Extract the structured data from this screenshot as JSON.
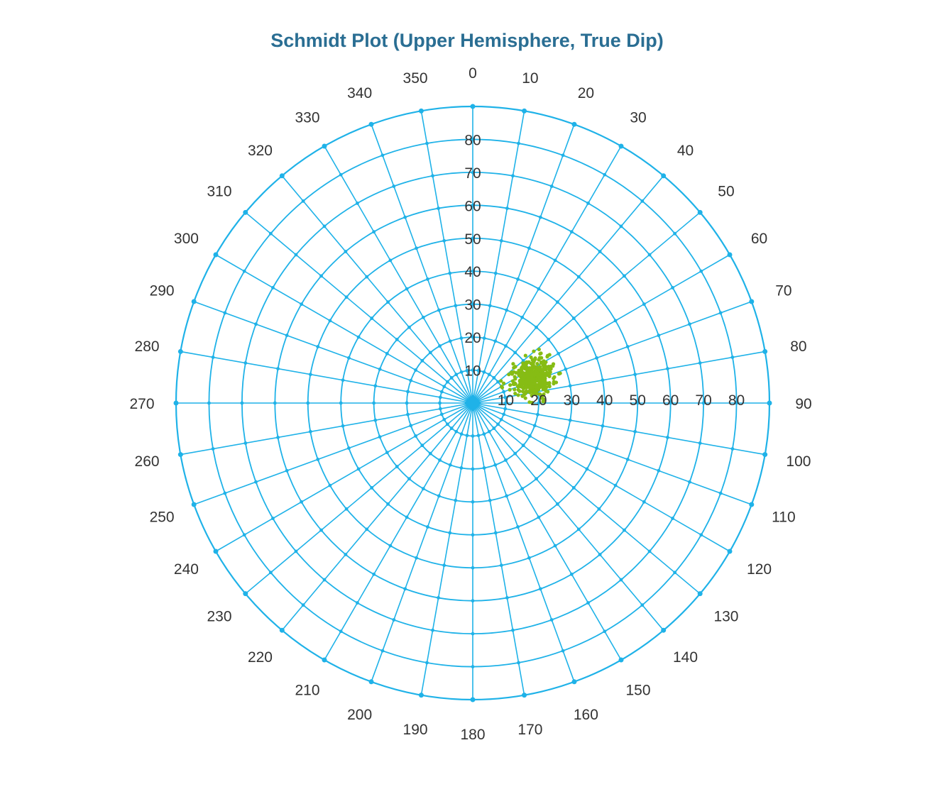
{
  "chart_data": {
    "type": "scatter",
    "title": "Schmidt Plot (Upper Hemisphere, True Dip)",
    "projection": "polar",
    "azimuth_ticks": [
      0,
      10,
      20,
      30,
      40,
      50,
      60,
      70,
      80,
      90,
      100,
      110,
      120,
      130,
      140,
      150,
      160,
      170,
      180,
      190,
      200,
      210,
      220,
      230,
      240,
      250,
      260,
      270,
      280,
      290,
      300,
      310,
      320,
      330,
      340,
      350
    ],
    "azimuth_labels": [
      "0",
      "10",
      "20",
      "30",
      "40",
      "50",
      "60",
      "70",
      "80",
      "90",
      "100",
      "110",
      "120",
      "130",
      "140",
      "150",
      "160",
      "170",
      "180",
      "190",
      "200",
      "210",
      "220",
      "230",
      "240",
      "250",
      "260",
      "270",
      "280",
      "290",
      "300",
      "310",
      "320",
      "330",
      "340",
      "350"
    ],
    "radial_ticks": [
      10,
      20,
      30,
      40,
      50,
      60,
      70,
      80
    ],
    "radial_labels_vertical": [
      "10",
      "20",
      "30",
      "40",
      "50",
      "60",
      "70",
      "80"
    ],
    "radial_labels_horizontal": [
      "10",
      "20",
      "30",
      "40",
      "50",
      "60",
      "70",
      "80"
    ],
    "radial_range": [
      0,
      90
    ],
    "grid": true,
    "series": [
      {
        "marker": "dot",
        "cluster": {
          "center_azimuth": 67,
          "center_dip": 20,
          "count": 380
        }
      }
    ],
    "colors": {
      "grid": "#1fb2e8",
      "title": "#2a6e93",
      "points": "#86bc14",
      "labels": "#333333"
    }
  }
}
